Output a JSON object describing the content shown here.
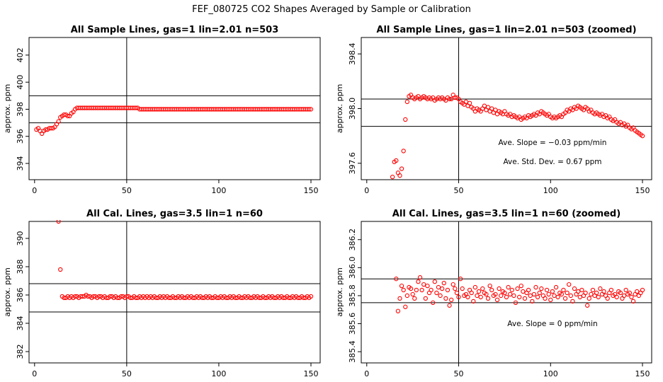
{
  "main_title": "FEF_080725  CO2 Shapes Averaged by Sample or Calibration",
  "chart_data": [
    {
      "type": "scatter",
      "title": "All Sample Lines, gas=1 lin=2.01 n=503",
      "xlabel": "",
      "ylabel": "approx. ppm",
      "xlim": [
        -3,
        155
      ],
      "ylim": [
        392.8,
        403.3
      ],
      "xticks": [
        "0",
        "50",
        "100",
        "150"
      ],
      "yticks": [
        "394",
        "396",
        "398",
        "400",
        "402"
      ],
      "hlines": [
        397.0,
        399.0
      ],
      "vline": 50,
      "marker_color": "#ff0000",
      "annotations": [],
      "x": [
        1,
        2,
        3,
        4,
        5,
        6,
        7,
        8,
        9,
        10,
        11,
        12,
        13,
        14,
        15,
        16,
        17,
        18,
        19,
        20,
        21,
        22,
        23,
        24,
        25,
        26,
        27,
        28,
        29,
        30,
        31,
        32,
        33,
        34,
        35,
        36,
        37,
        38,
        39,
        40,
        41,
        42,
        43,
        44,
        45,
        46,
        47,
        48,
        49,
        50,
        51,
        52,
        53,
        54,
        55,
        56,
        57,
        58,
        59,
        60,
        61,
        62,
        63,
        64,
        65,
        66,
        67,
        68,
        69,
        70,
        71,
        72,
        73,
        74,
        75,
        76,
        77,
        78,
        79,
        80,
        81,
        82,
        83,
        84,
        85,
        86,
        87,
        88,
        89,
        90,
        91,
        92,
        93,
        94,
        95,
        96,
        97,
        98,
        99,
        100,
        101,
        102,
        103,
        104,
        105,
        106,
        107,
        108,
        109,
        110,
        111,
        112,
        113,
        114,
        115,
        116,
        117,
        118,
        119,
        120,
        121,
        122,
        123,
        124,
        125,
        126,
        127,
        128,
        129,
        130,
        131,
        132,
        133,
        134,
        135,
        136,
        137,
        138,
        139,
        140,
        141,
        142,
        143,
        144,
        145,
        146,
        147,
        148,
        149,
        150
      ],
      "y": [
        396.5,
        396.6,
        396.4,
        396.2,
        396.4,
        396.5,
        396.5,
        396.6,
        396.6,
        396.6,
        396.7,
        396.9,
        397.1,
        397.4,
        397.5,
        397.6,
        397.6,
        397.5,
        397.5,
        397.7,
        397.8,
        398.0,
        398.1,
        398.1,
        398.1,
        398.1,
        398.1,
        398.1,
        398.1,
        398.1,
        398.1,
        398.1,
        398.1,
        398.1,
        398.1,
        398.1,
        398.1,
        398.1,
        398.1,
        398.1,
        398.1,
        398.1,
        398.1,
        398.1,
        398.1,
        398.1,
        398.1,
        398.1,
        398.1,
        398.1,
        398.1,
        398.1,
        398.1,
        398.1,
        398.1,
        398.1,
        398.0,
        398.0,
        398.0,
        398.0,
        398.0,
        398.0,
        398.0,
        398.0,
        398.0,
        398.0,
        398.0,
        398.0,
        398.0,
        398.0,
        398.0,
        398.0,
        398.0,
        398.0,
        398.0,
        398.0,
        398.0,
        398.0,
        398.0,
        398.0,
        398.0,
        398.0,
        398.0,
        398.0,
        398.0,
        398.0,
        398.0,
        398.0,
        398.0,
        398.0,
        398.0,
        398.0,
        398.0,
        398.0,
        398.0,
        398.0,
        398.0,
        398.0,
        398.0,
        398.0,
        398.0,
        398.0,
        398.0,
        398.0,
        398.0,
        398.0,
        398.0,
        398.0,
        398.0,
        398.0,
        398.0,
        398.0,
        398.0,
        398.0,
        398.0,
        398.0,
        398.0,
        398.0,
        398.0,
        398.0,
        398.0,
        398.0,
        398.0,
        398.0,
        398.0,
        398.0,
        398.0,
        398.0,
        398.0,
        398.0,
        398.0,
        398.0,
        398.0,
        398.0,
        398.0,
        398.0,
        398.0,
        398.0,
        398.0,
        398.0,
        398.0,
        398.0,
        398.0,
        398.0,
        398.0,
        398.0,
        398.0,
        398.0,
        398.0,
        398.0
      ]
    },
    {
      "type": "scatter",
      "title": "All Sample Lines, gas=1 lin=2.01 n=503 (zoomed)",
      "xlabel": "",
      "ylabel": "approx. ppm",
      "xlim": [
        -3,
        155
      ],
      "ylim": [
        397.48,
        398.52
      ],
      "xticks": [
        "0",
        "50",
        "100",
        "150"
      ],
      "yticks": [
        "397.6",
        "398.0",
        "398.4"
      ],
      "hlines": [
        397.87,
        398.07
      ],
      "vline": 50,
      "marker_color": "#ff0000",
      "annotations": [
        "Ave. Slope = −0.03  ppm/min",
        "Ave. Std. Dev. = 0.67  ppm"
      ],
      "x": [
        14,
        15,
        16,
        17,
        18,
        19,
        20,
        21,
        22,
        23,
        24,
        25,
        26,
        27,
        28,
        29,
        30,
        31,
        32,
        33,
        34,
        35,
        36,
        37,
        38,
        39,
        40,
        41,
        42,
        43,
        44,
        45,
        46,
        47,
        48,
        49,
        50,
        51,
        52,
        53,
        54,
        55,
        56,
        57,
        58,
        59,
        60,
        61,
        62,
        63,
        64,
        65,
        66,
        67,
        68,
        69,
        70,
        71,
        72,
        73,
        74,
        75,
        76,
        77,
        78,
        79,
        80,
        81,
        82,
        83,
        84,
        85,
        86,
        87,
        88,
        89,
        90,
        91,
        92,
        93,
        94,
        95,
        96,
        97,
        98,
        99,
        100,
        101,
        102,
        103,
        104,
        105,
        106,
        107,
        108,
        109,
        110,
        111,
        112,
        113,
        114,
        115,
        116,
        117,
        118,
        119,
        120,
        121,
        122,
        123,
        124,
        125,
        126,
        127,
        128,
        129,
        130,
        131,
        132,
        133,
        134,
        135,
        136,
        137,
        138,
        139,
        140,
        141,
        142,
        143,
        144,
        145,
        146,
        147,
        148,
        149,
        150
      ],
      "y": [
        397.5,
        397.61,
        397.62,
        397.53,
        397.51,
        397.56,
        397.69,
        397.92,
        398.05,
        398.09,
        398.1,
        398.08,
        398.07,
        398.08,
        398.09,
        398.07,
        398.08,
        398.09,
        398.08,
        398.07,
        398.08,
        398.07,
        398.08,
        398.06,
        398.07,
        398.08,
        398.07,
        398.08,
        398.07,
        398.06,
        398.08,
        398.07,
        398.07,
        398.1,
        398.08,
        398.08,
        398.07,
        398.05,
        398.04,
        398.03,
        398.05,
        398.02,
        398.04,
        398.01,
        398.0,
        397.98,
        398.0,
        397.99,
        397.98,
        398.0,
        398.02,
        397.99,
        398.01,
        397.98,
        398.0,
        397.97,
        397.99,
        397.96,
        397.98,
        397.97,
        397.96,
        397.98,
        397.96,
        397.95,
        397.96,
        397.94,
        397.95,
        397.94,
        397.93,
        397.94,
        397.92,
        397.93,
        397.94,
        397.93,
        397.95,
        397.94,
        397.95,
        397.96,
        397.95,
        397.97,
        397.96,
        397.98,
        397.97,
        397.96,
        397.95,
        397.96,
        397.94,
        397.93,
        397.94,
        397.93,
        397.94,
        397.95,
        397.94,
        397.96,
        397.97,
        397.99,
        397.98,
        398.0,
        397.99,
        398.01,
        398.0,
        398.02,
        398.01,
        398.0,
        397.99,
        398.01,
        398.0,
        397.98,
        397.99,
        397.97,
        397.96,
        397.97,
        397.96,
        397.95,
        397.96,
        397.94,
        397.95,
        397.93,
        397.94,
        397.92,
        397.91,
        397.92,
        397.9,
        397.89,
        397.9,
        397.88,
        397.89,
        397.87,
        397.88,
        397.86,
        397.85,
        397.86,
        397.84,
        397.83,
        397.82,
        397.81,
        397.8
      ]
    },
    {
      "type": "scatter",
      "title": "All Cal. Lines, gas=3.5 lin=1 n=60",
      "xlabel": "",
      "ylabel": "approx. ppm",
      "xlim": [
        -3,
        155
      ],
      "ylim": [
        381.2,
        391.2
      ],
      "xticks": [
        "0",
        "50",
        "100",
        "150"
      ],
      "yticks": [
        "382",
        "384",
        "386",
        "388",
        "390"
      ],
      "hlines": [
        384.8,
        386.8
      ],
      "vline": 50,
      "marker_color": "#ff0000",
      "annotations": [],
      "x": [
        13,
        14,
        15,
        16,
        17,
        18,
        19,
        20,
        21,
        22,
        23,
        24,
        25,
        26,
        27,
        28,
        29,
        30,
        31,
        32,
        33,
        34,
        35,
        36,
        37,
        38,
        39,
        40,
        41,
        42,
        43,
        44,
        45,
        46,
        47,
        48,
        49,
        50,
        51,
        52,
        53,
        54,
        55,
        56,
        57,
        58,
        59,
        60,
        61,
        62,
        63,
        64,
        65,
        66,
        67,
        68,
        69,
        70,
        71,
        72,
        73,
        74,
        75,
        76,
        77,
        78,
        79,
        80,
        81,
        82,
        83,
        84,
        85,
        86,
        87,
        88,
        89,
        90,
        91,
        92,
        93,
        94,
        95,
        96,
        97,
        98,
        99,
        100,
        101,
        102,
        103,
        104,
        105,
        106,
        107,
        108,
        109,
        110,
        111,
        112,
        113,
        114,
        115,
        116,
        117,
        118,
        119,
        120,
        121,
        122,
        123,
        124,
        125,
        126,
        127,
        128,
        129,
        130,
        131,
        132,
        133,
        134,
        135,
        136,
        137,
        138,
        139,
        140,
        141,
        142,
        143,
        144,
        145,
        146,
        147,
        148,
        149,
        150
      ],
      "y": [
        391.2,
        387.8,
        385.9,
        385.8,
        385.8,
        385.9,
        385.8,
        385.9,
        385.8,
        385.9,
        385.9,
        385.8,
        385.9,
        385.9,
        385.9,
        386.0,
        385.9,
        385.9,
        385.8,
        385.9,
        385.9,
        385.8,
        385.9,
        385.9,
        385.8,
        385.9,
        385.8,
        385.8,
        385.9,
        385.9,
        385.8,
        385.9,
        385.8,
        385.8,
        385.9,
        385.9,
        385.8,
        385.9,
        385.9,
        385.8,
        385.8,
        385.9,
        385.8,
        385.8,
        385.9,
        385.8,
        385.9,
        385.8,
        385.9,
        385.8,
        385.9,
        385.8,
        385.9,
        385.8,
        385.8,
        385.9,
        385.8,
        385.9,
        385.8,
        385.9,
        385.8,
        385.8,
        385.9,
        385.8,
        385.8,
        385.9,
        385.8,
        385.9,
        385.8,
        385.8,
        385.9,
        385.8,
        385.9,
        385.8,
        385.8,
        385.9,
        385.8,
        385.9,
        385.8,
        385.8,
        385.9,
        385.8,
        385.9,
        385.8,
        385.8,
        385.9,
        385.8,
        385.8,
        385.9,
        385.8,
        385.9,
        385.8,
        385.8,
        385.9,
        385.8,
        385.9,
        385.8,
        385.8,
        385.9,
        385.8,
        385.8,
        385.9,
        385.8,
        385.9,
        385.8,
        385.8,
        385.9,
        385.8,
        385.9,
        385.8,
        385.8,
        385.9,
        385.8,
        385.8,
        385.9,
        385.8,
        385.9,
        385.8,
        385.8,
        385.9,
        385.8,
        385.9,
        385.8,
        385.8,
        385.9,
        385.8,
        385.8,
        385.9,
        385.8,
        385.9,
        385.8,
        385.8,
        385.9,
        385.8,
        385.8,
        385.9,
        385.8,
        385.9
      ]
    },
    {
      "type": "scatter",
      "title": "All Cal. Lines, gas=3.5 lin=1 n=60 (zoomed)",
      "xlabel": "",
      "ylabel": "approx. ppm",
      "xlim": [
        -3,
        155
      ],
      "ylim": [
        385.32,
        386.33
      ],
      "xticks": [
        "0",
        "50",
        "100",
        "150"
      ],
      "yticks": [
        "385.4",
        "385.6",
        "385.8",
        "386.0",
        "386.2"
      ],
      "hlines": [
        385.75,
        385.92
      ],
      "vline": 50,
      "marker_color": "#ff0000",
      "annotations": [
        "Ave. Slope =  0  ppm/min"
      ],
      "x": [
        16,
        17,
        18,
        19,
        20,
        21,
        22,
        23,
        24,
        25,
        26,
        27,
        28,
        29,
        30,
        31,
        32,
        33,
        34,
        35,
        36,
        37,
        38,
        39,
        40,
        41,
        42,
        43,
        44,
        45,
        46,
        47,
        48,
        49,
        50,
        51,
        52,
        53,
        54,
        55,
        56,
        57,
        58,
        59,
        60,
        61,
        62,
        63,
        64,
        65,
        66,
        67,
        68,
        69,
        70,
        71,
        72,
        73,
        74,
        75,
        76,
        77,
        78,
        79,
        80,
        81,
        82,
        83,
        84,
        85,
        86,
        87,
        88,
        89,
        90,
        91,
        92,
        93,
        94,
        95,
        96,
        97,
        98,
        99,
        100,
        101,
        102,
        103,
        104,
        105,
        106,
        107,
        108,
        109,
        110,
        111,
        112,
        113,
        114,
        115,
        116,
        117,
        118,
        119,
        120,
        121,
        122,
        123,
        124,
        125,
        126,
        127,
        128,
        129,
        130,
        131,
        132,
        133,
        134,
        135,
        136,
        137,
        138,
        139,
        140,
        141,
        142,
        143,
        144,
        145,
        146,
        147,
        148,
        149,
        150
      ],
      "y": [
        385.92,
        385.69,
        385.78,
        385.87,
        385.84,
        385.72,
        385.8,
        385.86,
        385.85,
        385.81,
        385.78,
        385.84,
        385.9,
        385.93,
        385.84,
        385.88,
        385.78,
        385.87,
        385.82,
        385.84,
        385.75,
        385.9,
        385.82,
        385.86,
        385.8,
        385.85,
        385.89,
        385.78,
        385.84,
        385.73,
        385.77,
        385.88,
        385.85,
        385.82,
        385.79,
        385.92,
        385.85,
        385.8,
        385.81,
        385.79,
        385.84,
        385.82,
        385.76,
        385.86,
        385.8,
        385.83,
        385.79,
        385.85,
        385.82,
        385.81,
        385.78,
        385.87,
        385.84,
        385.8,
        385.81,
        385.77,
        385.85,
        385.8,
        385.83,
        385.82,
        385.79,
        385.86,
        385.81,
        385.84,
        385.8,
        385.75,
        385.85,
        385.79,
        385.87,
        385.83,
        385.78,
        385.82,
        385.84,
        385.8,
        385.76,
        385.81,
        385.86,
        385.79,
        385.82,
        385.85,
        385.8,
        385.78,
        385.84,
        385.81,
        385.77,
        385.83,
        385.8,
        385.86,
        385.79,
        385.82,
        385.81,
        385.84,
        385.78,
        385.82,
        385.88,
        385.8,
        385.76,
        385.85,
        385.81,
        385.83,
        385.79,
        385.84,
        385.8,
        385.82,
        385.73,
        385.78,
        385.81,
        385.84,
        385.8,
        385.82,
        385.79,
        385.85,
        385.81,
        385.83,
        385.8,
        385.78,
        385.82,
        385.84,
        385.8,
        385.81,
        385.79,
        385.83,
        385.82,
        385.78,
        385.8,
        385.84,
        385.81,
        385.82,
        385.79,
        385.76,
        385.81,
        385.83,
        385.8,
        385.82,
        385.84
      ]
    }
  ]
}
